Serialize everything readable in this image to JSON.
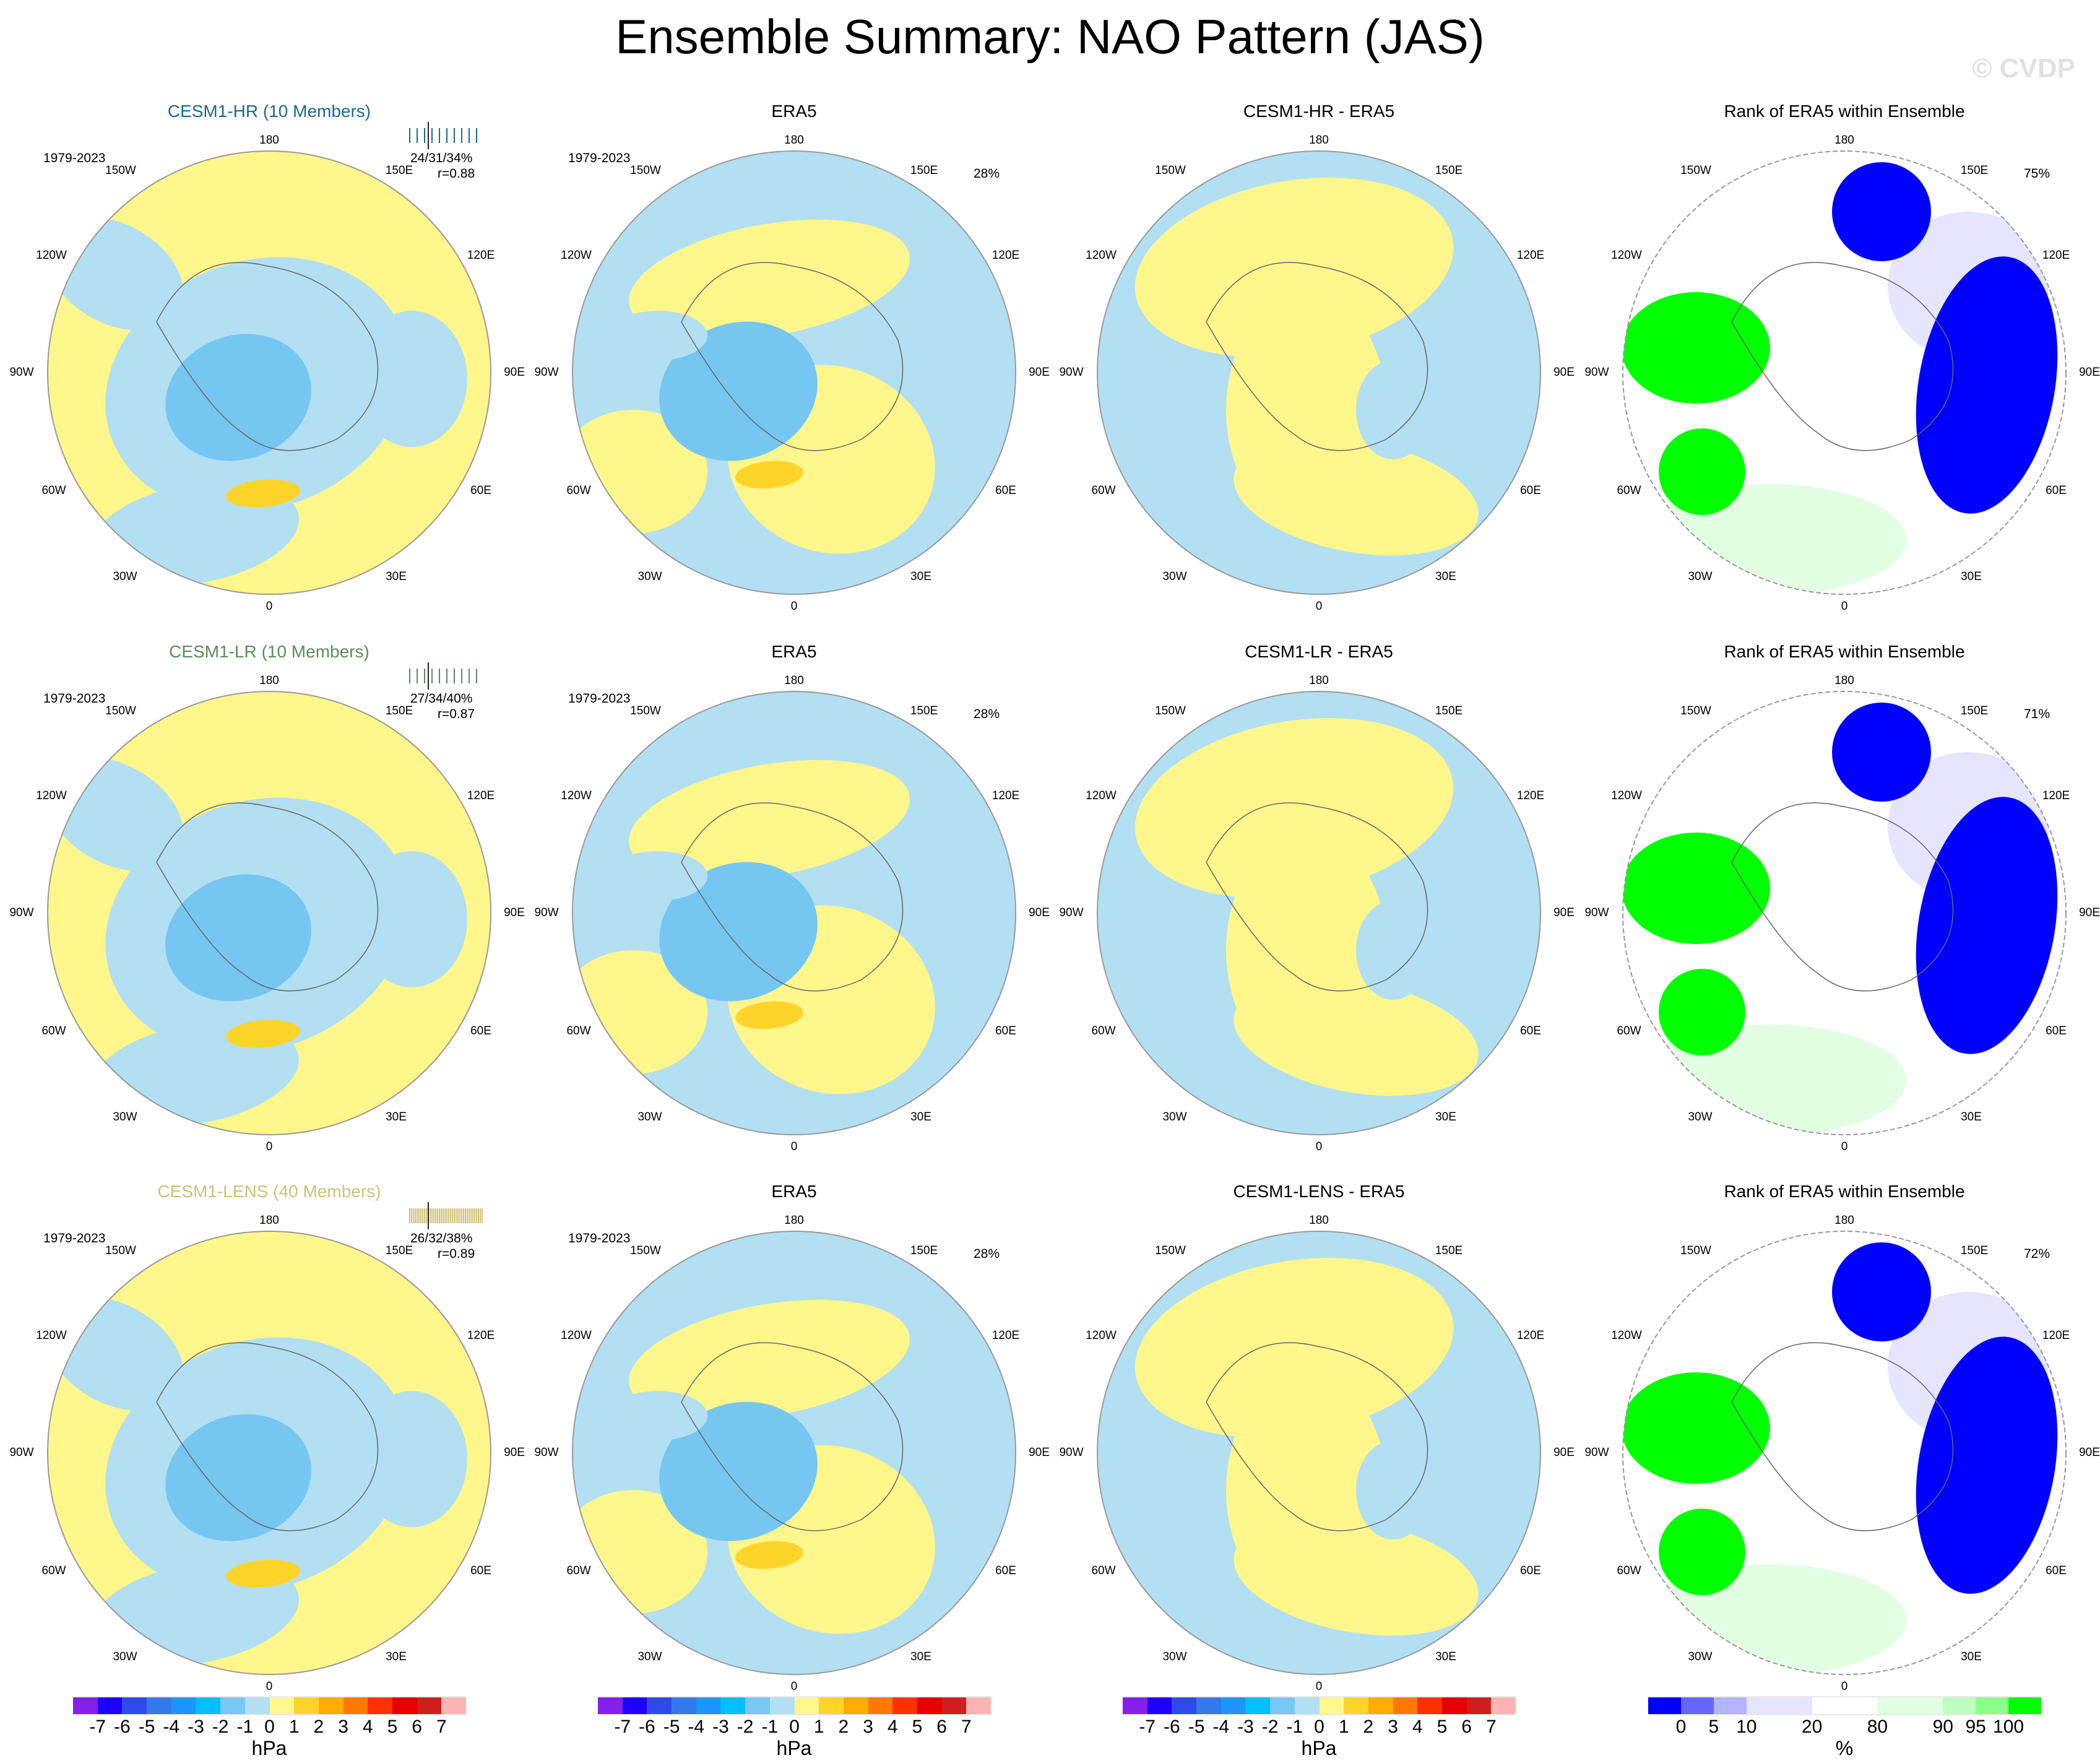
{
  "title": "Ensemble Summary: NAO Pattern (JAS)",
  "watermark": "© CVDP",
  "lon_labels": {
    "n": "180",
    "s": "0",
    "w": "90W",
    "e": "90E",
    "nw": "150W",
    "ne": "150E",
    "wnw": "120W",
    "ene": "120E",
    "wsw": "60W",
    "ese": "60E",
    "sw": "30W",
    "se": "30E"
  },
  "colors": {
    "neg1": "#b3dff2",
    "neg2": "#76c6f2",
    "neg3": "#1eb4f8",
    "pos1": "#fff68c",
    "pos2": "#ffd42a",
    "rank_0": "#0000ff",
    "rank_5": "#6666ff",
    "rank_10": "#b3b3ff",
    "rank_20": "#e5e5ff",
    "rank_mid": "#ffffff",
    "rank_90": "#e3ffe3",
    "rank_95": "#bfffbf",
    "rank_100": "#8cff8c",
    "rank_top": "#00ff00"
  },
  "rows": [
    {
      "model": {
        "title": "CESM1-HR (10 Members)",
        "title_color": "#1b6a8c",
        "period": "1979-2023",
        "pct": "24/31/34%",
        "r": "r=0.88",
        "members": 10
      },
      "obs": {
        "title": "ERA5",
        "period": "1979-2023",
        "pct": "28%"
      },
      "diff": {
        "title": "CESM1-HR - ERA5"
      },
      "rank": {
        "title": "Rank of ERA5 within Ensemble",
        "pct": "75%"
      }
    },
    {
      "model": {
        "title": "CESM1-LR (10 Members)",
        "title_color": "#5f8a5f",
        "period": "1979-2023",
        "pct": "27/34/40%",
        "r": "r=0.87",
        "members": 10
      },
      "obs": {
        "title": "ERA5",
        "period": "1979-2023",
        "pct": "28%"
      },
      "diff": {
        "title": "CESM1-LR - ERA5"
      },
      "rank": {
        "title": "Rank of ERA5 within Ensemble",
        "pct": "71%"
      }
    },
    {
      "model": {
        "title": "CESM1-LENS (40 Members)",
        "title_color": "#cfc27a",
        "period": "1979-2023",
        "pct": "26/32/38%",
        "r": "r=0.89",
        "members": 40
      },
      "obs": {
        "title": "ERA5",
        "period": "1979-2023",
        "pct": "28%"
      },
      "diff": {
        "title": "CESM1-LENS - ERA5"
      },
      "rank": {
        "title": "Rank of ERA5 within Ensemble",
        "pct": "72%"
      }
    }
  ],
  "colorbars": [
    {
      "unit": "hPa",
      "labels": [
        "-7",
        "-6",
        "-5",
        "-4",
        "-3",
        "-2",
        "-1",
        "0",
        "1",
        "2",
        "3",
        "4",
        "5",
        "6",
        "7"
      ],
      "colors": [
        "#8420ea",
        "#1e00fa",
        "#2e4aec",
        "#3479ec",
        "#1c96fc",
        "#00c0fc",
        "#78c8f4",
        "#b4e0f4",
        "#fff88c",
        "#ffd428",
        "#ffac00",
        "#ff7800",
        "#ff3000",
        "#e80000",
        "#d01e1e",
        "#ffb4b4"
      ]
    },
    {
      "unit": "hPa",
      "labels": [
        "-7",
        "-6",
        "-5",
        "-4",
        "-3",
        "-2",
        "-1",
        "0",
        "1",
        "2",
        "3",
        "4",
        "5",
        "6",
        "7"
      ],
      "colors": [
        "#8420ea",
        "#1e00fa",
        "#2e4aec",
        "#3479ec",
        "#1c96fc",
        "#00c0fc",
        "#78c8f4",
        "#b4e0f4",
        "#fff88c",
        "#ffd428",
        "#ffac00",
        "#ff7800",
        "#ff3000",
        "#e80000",
        "#d01e1e",
        "#ffb4b4"
      ]
    },
    {
      "unit": "hPa",
      "labels": [
        "-7",
        "-6",
        "-5",
        "-4",
        "-3",
        "-2",
        "-1",
        "0",
        "1",
        "2",
        "3",
        "4",
        "5",
        "6",
        "7"
      ],
      "colors": [
        "#8420ea",
        "#1e00fa",
        "#2e4aec",
        "#3479ec",
        "#1c96fc",
        "#00c0fc",
        "#78c8f4",
        "#b4e0f4",
        "#fff88c",
        "#ffd428",
        "#ffac00",
        "#ff7800",
        "#ff3000",
        "#e80000",
        "#d01e1e",
        "#ffb4b4"
      ]
    },
    {
      "unit": "%",
      "labels": [
        "0",
        "5",
        "10",
        "20",
        "80",
        "90",
        "95",
        "100"
      ],
      "colors": [
        "#0000ff",
        "#6666ff",
        "#b3b3ff",
        "#e5e5ff",
        "#ffffff",
        "#e3ffe3",
        "#bfffbf",
        "#8cff8c",
        "#00ff00"
      ],
      "widths": [
        1,
        1,
        1,
        2,
        2,
        2,
        1,
        1,
        1
      ]
    }
  ]
}
